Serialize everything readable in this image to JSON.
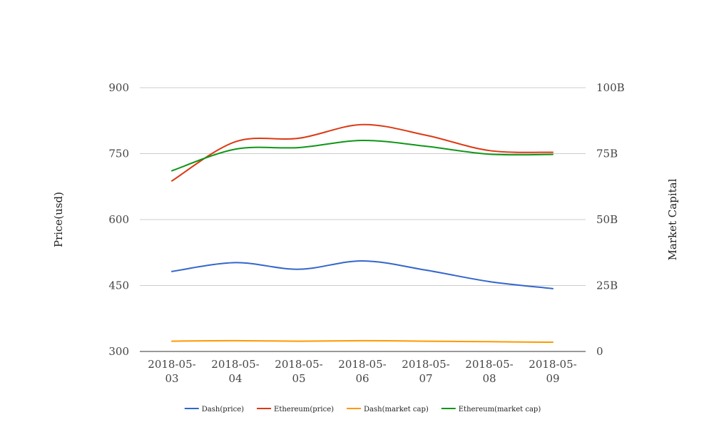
{
  "chart_data": {
    "type": "line",
    "title": "",
    "categories": [
      [
        "2018-05-",
        "03"
      ],
      [
        "2018-05-",
        "04"
      ],
      [
        "2018-05-",
        "05"
      ],
      [
        "2018-05-",
        "06"
      ],
      [
        "2018-05-",
        "07"
      ],
      [
        "2018-05-",
        "08"
      ],
      [
        "2018-05-",
        "09"
      ]
    ],
    "y_left": {
      "label": "Price(usd)",
      "ylim": [
        300,
        900
      ],
      "ticks": [
        300,
        450,
        600,
        750,
        900
      ],
      "tick_labels": [
        "300",
        "450",
        "600",
        "750",
        "900"
      ]
    },
    "y_right": {
      "label": "Market Capital",
      "ylim": [
        0,
        100000000000
      ],
      "ticks": [
        0,
        25000000000,
        50000000000,
        75000000000,
        100000000000
      ],
      "tick_labels": [
        "0",
        "25B",
        "50B",
        "75B",
        "100B"
      ]
    },
    "grid": true,
    "legend_position": "bottom",
    "series": [
      {
        "name": "Dash(price)",
        "axis": "left",
        "color": "#3366cc",
        "values": [
          482,
          502,
          487,
          506,
          485,
          459,
          443
        ]
      },
      {
        "name": "Ethereum(price)",
        "axis": "left",
        "color": "#dc3912",
        "values": [
          688,
          777,
          785,
          816,
          792,
          757,
          753
        ]
      },
      {
        "name": "Dash(market cap)",
        "axis": "right",
        "color": "#ff9900",
        "values": [
          3900000000,
          4100000000,
          3900000000,
          4100000000,
          3900000000,
          3700000000,
          3500000000
        ]
      },
      {
        "name": "Ethereum(market cap)",
        "axis": "right",
        "color": "#109618",
        "values": [
          68500000000,
          76700000000,
          77300000000,
          80000000000,
          77800000000,
          74800000000,
          74700000000
        ]
      }
    ]
  }
}
